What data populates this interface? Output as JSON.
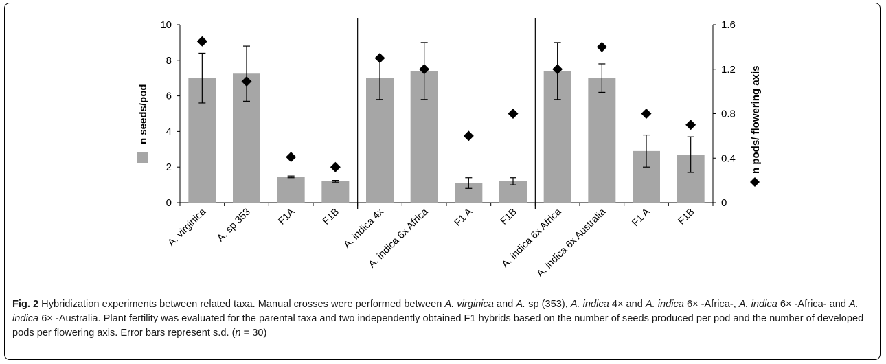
{
  "chart_data": {
    "type": "bar",
    "categories": [
      "A. virginica",
      "A. sp 353",
      "F1A",
      "F1B",
      "A. indica 4x",
      "A. indica 6x Africa",
      "F1 A",
      "F1B",
      "A. indica 6x Africa",
      "A. indica 6x Australia",
      "F1 A",
      "F1B"
    ],
    "series": [
      {
        "name": "n seeds/pod",
        "kind": "bar",
        "axis": "left",
        "values": [
          7.0,
          7.25,
          1.45,
          1.2,
          7.0,
          7.4,
          1.1,
          1.2,
          7.4,
          7.0,
          2.9,
          2.7
        ],
        "error": [
          1.4,
          1.55,
          0.05,
          0.05,
          1.2,
          1.6,
          0.3,
          0.2,
          1.6,
          0.8,
          0.9,
          1.0
        ]
      },
      {
        "name": "n pods/ flowering axis",
        "kind": "marker",
        "axis": "right",
        "values": [
          1.45,
          1.09,
          0.41,
          0.32,
          1.3,
          1.2,
          0.6,
          0.8,
          1.2,
          1.4,
          0.8,
          0.7
        ]
      }
    ],
    "ylabel": "n seeds/pod",
    "y2label": "n pods/ flowering axis",
    "ylim": [
      0,
      10
    ],
    "y2lim": [
      0,
      1.6
    ],
    "yticks": [
      "0",
      "2",
      "4",
      "6",
      "8",
      "10"
    ],
    "y2ticks": [
      "0",
      "0.4",
      "0.8",
      "1.2",
      "1.6"
    ],
    "group_separators_after": [
      4,
      8
    ],
    "colors": {
      "bar": "#a6a6a6",
      "marker": "#000000",
      "axis": "#000000"
    }
  },
  "caption": {
    "label": "Fig. 2",
    "segments": [
      {
        "t": " Hybridization experiments between related taxa. Manual crosses were performed between ",
        "i": false
      },
      {
        "t": "A. virginica",
        "i": true
      },
      {
        "t": " and ",
        "i": false
      },
      {
        "t": "A.",
        "i": true
      },
      {
        "t": " sp (353), ",
        "i": false
      },
      {
        "t": "A. indica",
        "i": true
      },
      {
        "t": " 4× and ",
        "i": false
      },
      {
        "t": "A. indica",
        "i": true
      },
      {
        "t": " 6× -Africa-, ",
        "i": false
      },
      {
        "t": "A. indica",
        "i": true
      },
      {
        "t": " 6× -Africa- and ",
        "i": false
      },
      {
        "t": "A. indica",
        "i": true
      },
      {
        "t": " 6× -Australia. Plant fertility was evaluated for the parental taxa and two independently obtained F1 hybrids based on the number of seeds produced per pod and the number of developed pods per flowering axis. Error bars represent s.d. (",
        "i": false
      },
      {
        "t": "n",
        "i": true
      },
      {
        "t": " = 30)",
        "i": false
      }
    ]
  }
}
